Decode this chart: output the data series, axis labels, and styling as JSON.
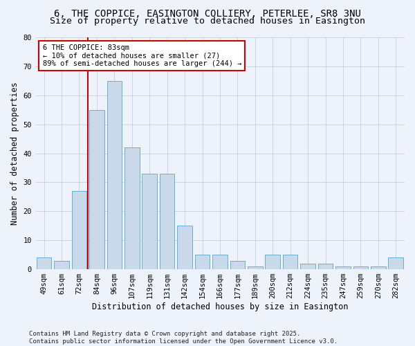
{
  "title_line1": "6, THE COPPICE, EASINGTON COLLIERY, PETERLEE, SR8 3NU",
  "title_line2": "Size of property relative to detached houses in Easington",
  "xlabel": "Distribution of detached houses by size in Easington",
  "ylabel": "Number of detached properties",
  "categories": [
    "49sqm",
    "61sqm",
    "72sqm",
    "84sqm",
    "96sqm",
    "107sqm",
    "119sqm",
    "131sqm",
    "142sqm",
    "154sqm",
    "166sqm",
    "177sqm",
    "189sqm",
    "200sqm",
    "212sqm",
    "224sqm",
    "235sqm",
    "247sqm",
    "259sqm",
    "270sqm",
    "282sqm"
  ],
  "values": [
    4,
    3,
    27,
    55,
    65,
    42,
    33,
    33,
    15,
    5,
    5,
    3,
    1,
    5,
    5,
    2,
    2,
    1,
    1,
    1,
    4
  ],
  "bar_color": "#c9d9ea",
  "bar_edge_color": "#6baed6",
  "vline_color": "#cc0000",
  "annotation_text": "6 THE COPPICE: 83sqm\n← 10% of detached houses are smaller (27)\n89% of semi-detached houses are larger (244) →",
  "annotation_box_color": "#ffffff",
  "annotation_box_edge": "#cc0000",
  "ylim": [
    0,
    80
  ],
  "yticks": [
    0,
    10,
    20,
    30,
    40,
    50,
    60,
    70,
    80
  ],
  "footer": "Contains HM Land Registry data © Crown copyright and database right 2025.\nContains public sector information licensed under the Open Government Licence v3.0.",
  "bg_color": "#eef2fb",
  "grid_color": "#c5cfe0",
  "title_fontsize": 10,
  "subtitle_fontsize": 9.5,
  "axis_label_fontsize": 8.5,
  "tick_fontsize": 7.5,
  "footer_fontsize": 6.5,
  "annotation_fontsize": 7.5
}
